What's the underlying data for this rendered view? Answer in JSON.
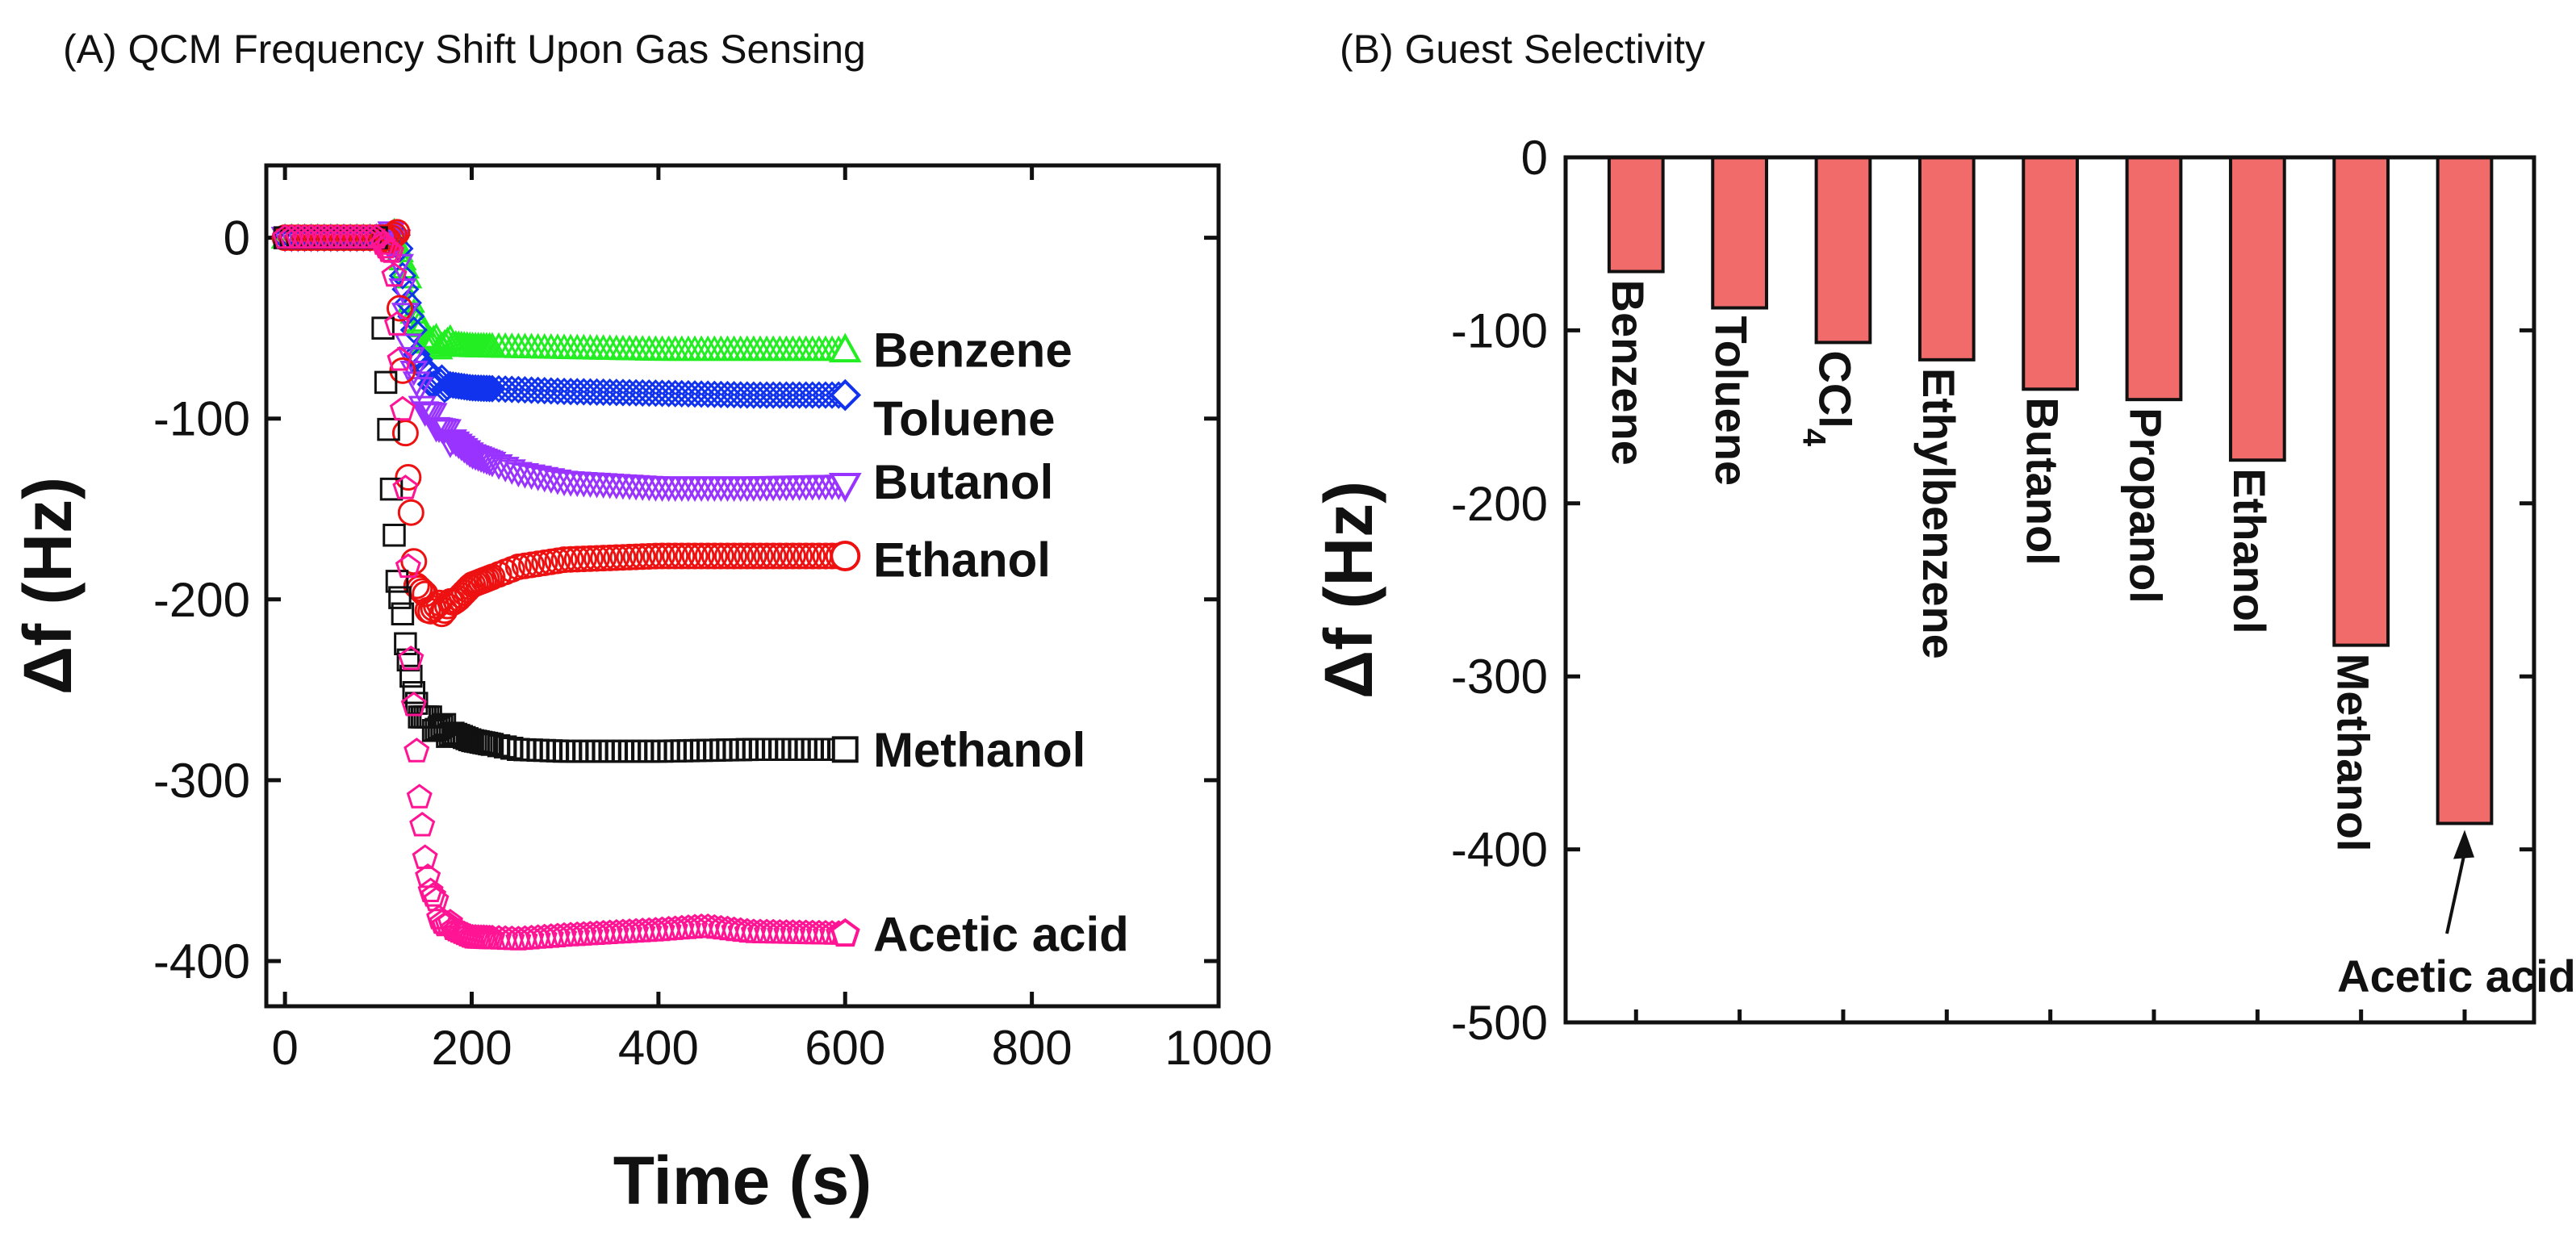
{
  "chart_data": [
    {
      "type": "scatter",
      "title": "(A) QCM Frequency Shift Upon Gas Sensing",
      "xlabel": "Time (s)",
      "ylabel": "Δf (Hz)",
      "xlim": [
        -20,
        1000
      ],
      "ylim": [
        -425,
        40
      ],
      "xticks": [
        0,
        200,
        400,
        600,
        800,
        1000
      ],
      "yticks": [
        0,
        -100,
        -200,
        -300,
        -400
      ],
      "series": [
        {
          "name": "Benzene",
          "color": "#22ee22",
          "marker": "triangle",
          "points": [
            [
              0,
              0
            ],
            [
              50,
              0
            ],
            [
              100,
              0
            ],
            [
              120,
              0
            ],
            [
              130,
              -20
            ],
            [
              140,
              -45
            ],
            [
              150,
              -55
            ],
            [
              160,
              -58
            ],
            [
              200,
              -60
            ],
            [
              300,
              -61
            ],
            [
              400,
              -62
            ],
            [
              500,
              -62
            ],
            [
              600,
              -62
            ]
          ]
        },
        {
          "name": "Toluene",
          "color": "#1133ee",
          "marker": "diamond",
          "points": [
            [
              0,
              0
            ],
            [
              50,
              0
            ],
            [
              100,
              0
            ],
            [
              120,
              0
            ],
            [
              130,
              -30
            ],
            [
              140,
              -60
            ],
            [
              150,
              -75
            ],
            [
              160,
              -80
            ],
            [
              200,
              -83
            ],
            [
              300,
              -85
            ],
            [
              400,
              -86
            ],
            [
              500,
              -87
            ],
            [
              600,
              -87
            ]
          ]
        },
        {
          "name": "Butanol",
          "color": "#9933ff",
          "marker": "triangle-down",
          "points": [
            [
              0,
              0
            ],
            [
              50,
              0
            ],
            [
              100,
              0
            ],
            [
              120,
              0
            ],
            [
              130,
              -50
            ],
            [
              140,
              -80
            ],
            [
              150,
              -95
            ],
            [
              175,
              -110
            ],
            [
              200,
              -120
            ],
            [
              250,
              -130
            ],
            [
              300,
              -135
            ],
            [
              400,
              -138
            ],
            [
              500,
              -138
            ],
            [
              600,
              -137
            ]
          ]
        },
        {
          "name": "Ethanol",
          "color": "#ee1111",
          "marker": "circle",
          "points": [
            [
              0,
              0
            ],
            [
              50,
              0
            ],
            [
              100,
              0
            ],
            [
              120,
              0
            ],
            [
              130,
              -120
            ],
            [
              140,
              -190
            ],
            [
              155,
              -205
            ],
            [
              170,
              -205
            ],
            [
              185,
              -200
            ],
            [
              200,
              -192
            ],
            [
              250,
              -182
            ],
            [
              300,
              -178
            ],
            [
              400,
              -176
            ],
            [
              500,
              -176
            ],
            [
              600,
              -176
            ]
          ]
        },
        {
          "name": "Methanol",
          "color": "#111111",
          "marker": "square",
          "points": [
            [
              0,
              0
            ],
            [
              50,
              0
            ],
            [
              100,
              0
            ],
            [
              110,
              -100
            ],
            [
              120,
              -190
            ],
            [
              140,
              -260
            ],
            [
              160,
              -270
            ],
            [
              200,
              -278
            ],
            [
              250,
              -283
            ],
            [
              300,
              -284
            ],
            [
              400,
              -284
            ],
            [
              500,
              -283
            ],
            [
              600,
              -283
            ]
          ]
        },
        {
          "name": "Acetic acid",
          "color": "#ff1493",
          "marker": "pentagon",
          "points": [
            [
              0,
              0
            ],
            [
              50,
              0
            ],
            [
              100,
              0
            ],
            [
              115,
              -10
            ],
            [
              125,
              -80
            ],
            [
              135,
              -230
            ],
            [
              145,
              -320
            ],
            [
              155,
              -360
            ],
            [
              170,
              -380
            ],
            [
              200,
              -387
            ],
            [
              250,
              -388
            ],
            [
              300,
              -386
            ],
            [
              400,
              -383
            ],
            [
              450,
              -381
            ],
            [
              500,
              -384
            ],
            [
              600,
              -385
            ]
          ]
        }
      ]
    },
    {
      "type": "bar",
      "title": "(B) Guest Selectivity",
      "ylabel": "Δf (Hz)",
      "ylim": [
        -500,
        0
      ],
      "yticks": [
        0,
        -100,
        -200,
        -300,
        -400,
        -500
      ],
      "bar_color": "#f26b6b",
      "categories": [
        "Benzene",
        "Toluene",
        "CCl4",
        "Ethylbenzene",
        "Butanol",
        "Propanol",
        "Ethanol",
        "Methanol",
        "Acetic acid"
      ],
      "display_labels": [
        {
          "main": "Benzene",
          "sub": ""
        },
        {
          "main": "Toluene",
          "sub": ""
        },
        {
          "main": "CCl",
          "sub": "4"
        },
        {
          "main": "Ethylbenzene",
          "sub": ""
        },
        {
          "main": "Butanol",
          "sub": ""
        },
        {
          "main": "Propanol",
          "sub": ""
        },
        {
          "main": "Ethanol",
          "sub": ""
        },
        {
          "main": "Methanol",
          "sub": ""
        },
        {
          "main": "Acetic acid",
          "sub": ""
        }
      ],
      "values": [
        -66,
        -87,
        -107,
        -117,
        -134,
        -140,
        -175,
        -282,
        -385
      ],
      "annotation": "Acetic acid"
    }
  ]
}
